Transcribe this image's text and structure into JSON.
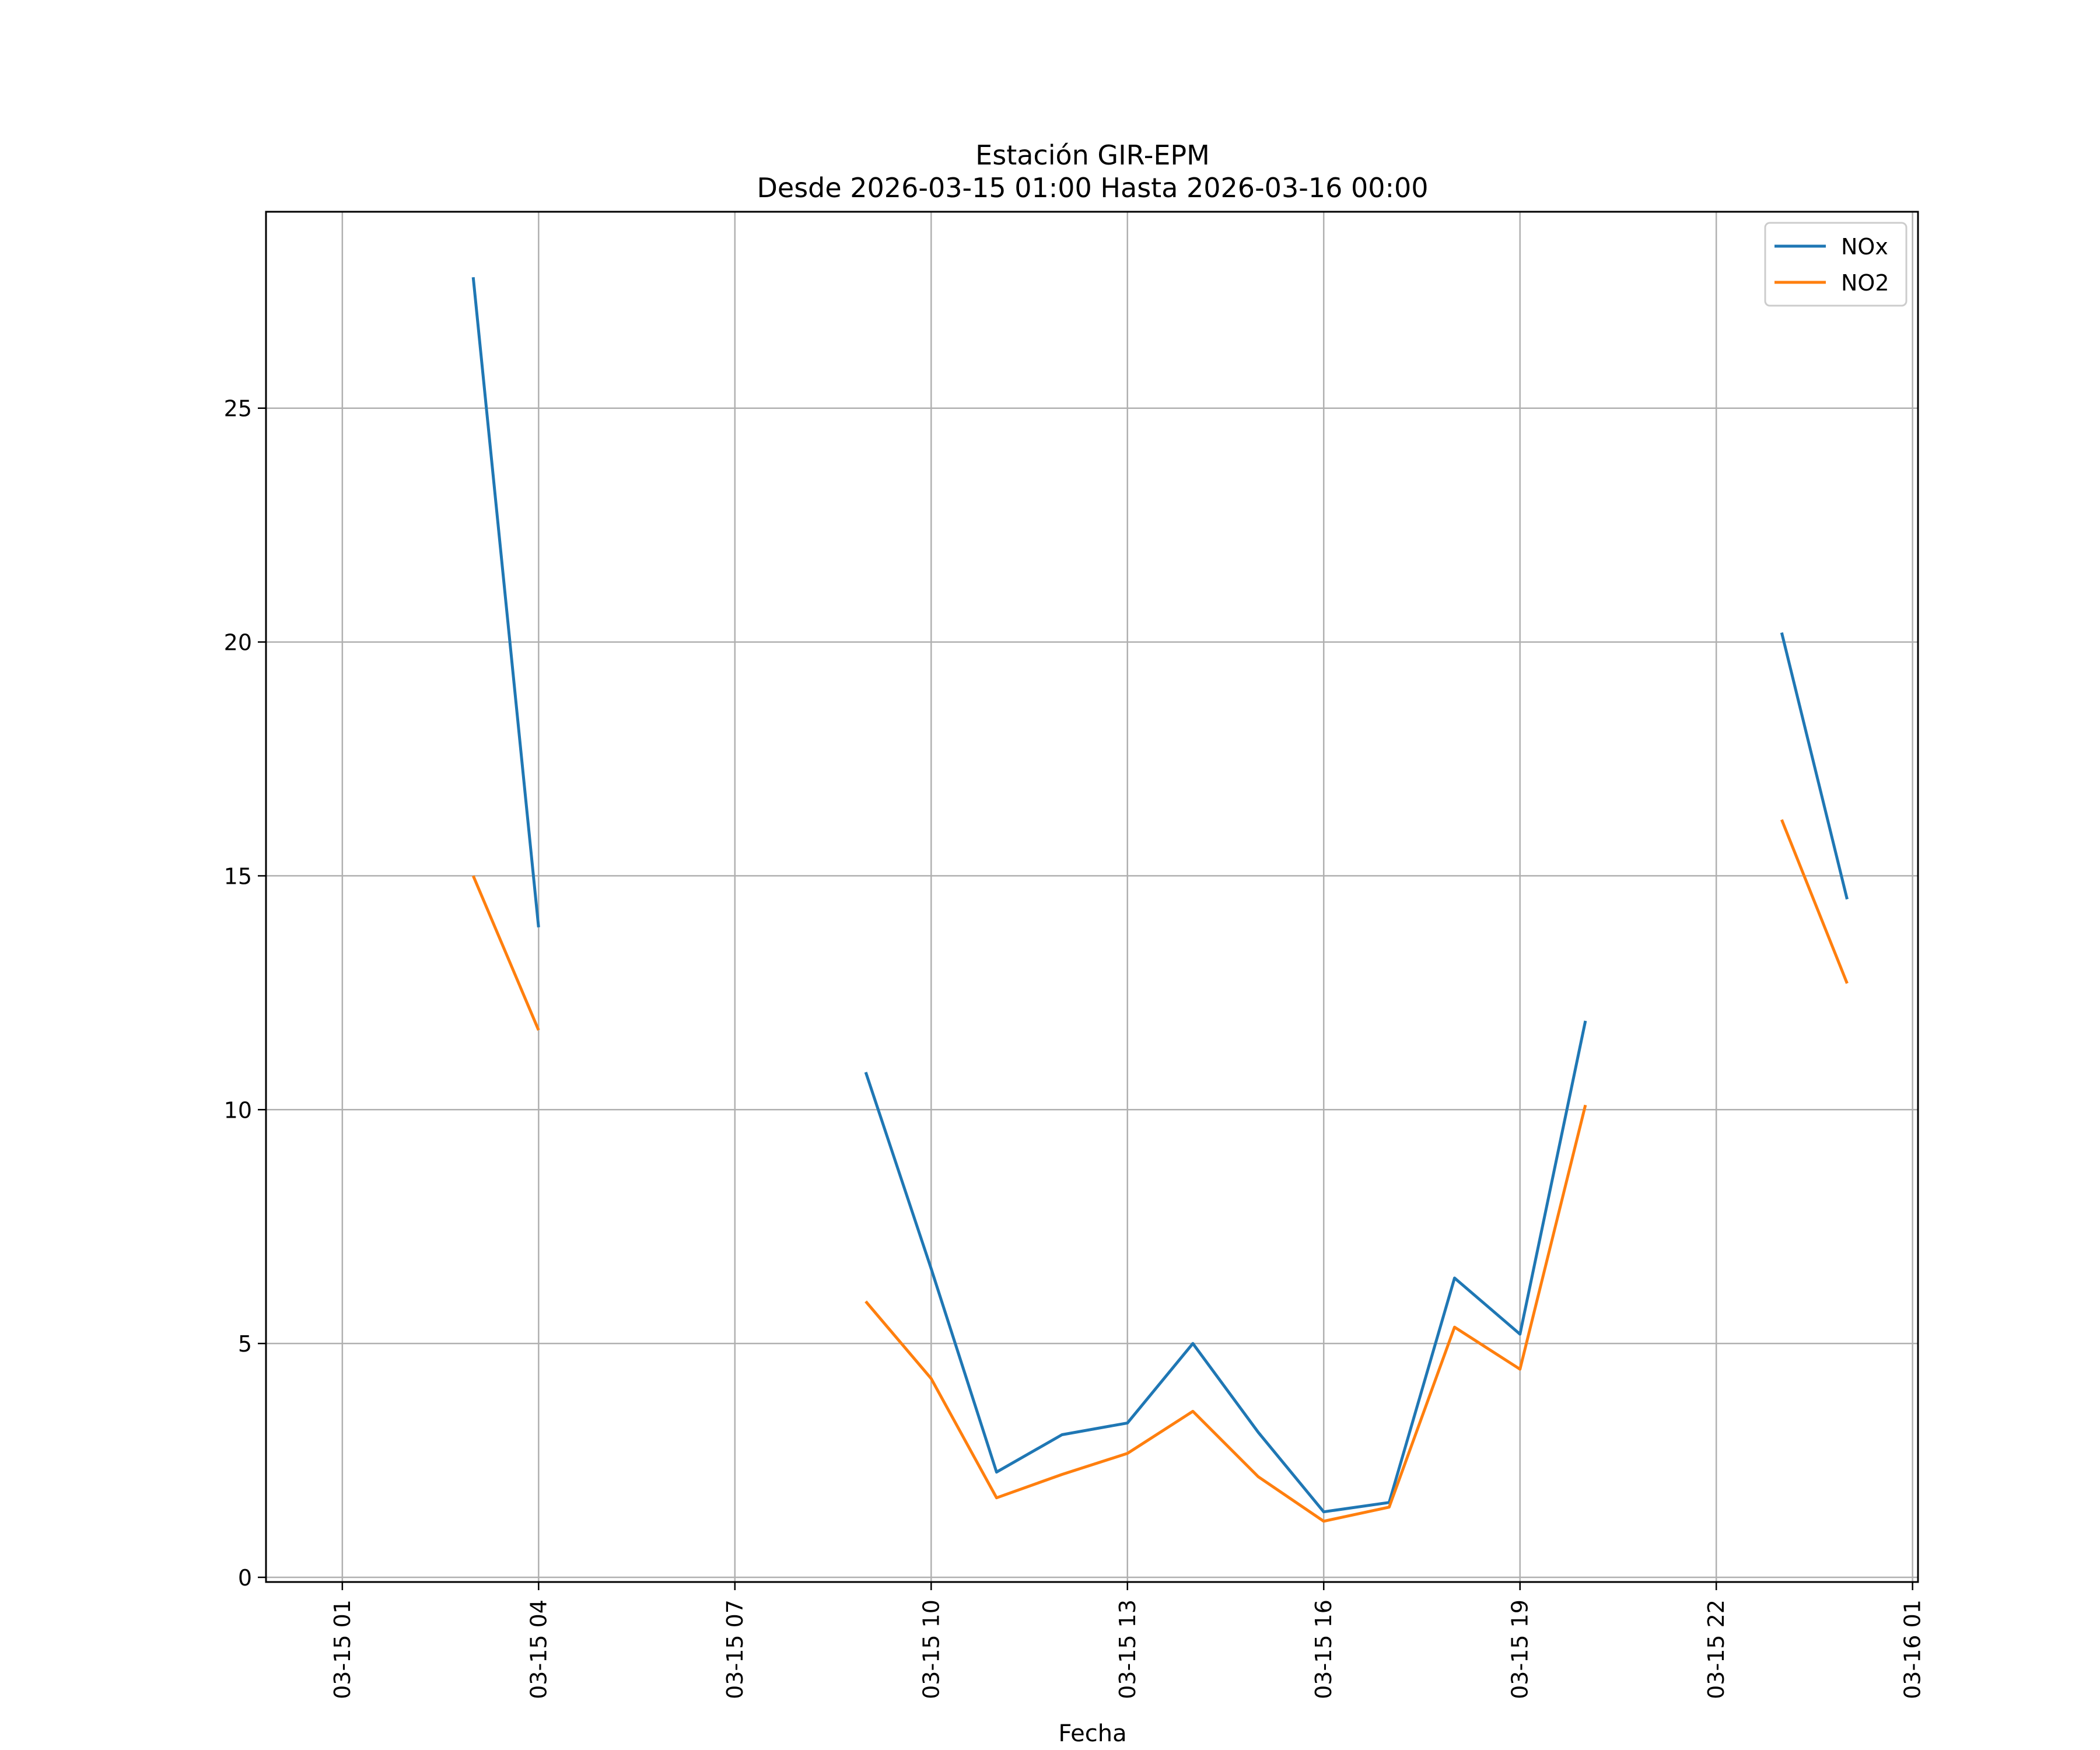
{
  "chart_data": {
    "type": "line",
    "title": "Estación GIR-EPM",
    "subtitle": "Desde 2026-03-15 01:00 Hasta 2026-03-16 00:00",
    "xlabel": "Fecha",
    "ylabel": "",
    "x_ticks": [
      "03-15 01",
      "03-15 04",
      "03-15 07",
      "03-15 10",
      "03-15 13",
      "03-15 16",
      "03-15 19",
      "03-15 22",
      "03-16 01"
    ],
    "y_ticks": [
      0,
      5,
      10,
      15,
      20,
      25
    ],
    "xlim": [
      "2026-03-14 23:50",
      "2026-03-16 01:05"
    ],
    "ylim": [
      -0.1,
      29.2
    ],
    "grid": true,
    "legend_position": "top-right",
    "x": [
      "2026-03-15 01:00",
      "2026-03-15 02:00",
      "2026-03-15 03:00",
      "2026-03-15 04:00",
      "2026-03-15 05:00",
      "2026-03-15 06:00",
      "2026-03-15 07:00",
      "2026-03-15 08:00",
      "2026-03-15 09:00",
      "2026-03-15 10:00",
      "2026-03-15 11:00",
      "2026-03-15 12:00",
      "2026-03-15 13:00",
      "2026-03-15 14:00",
      "2026-03-15 15:00",
      "2026-03-15 16:00",
      "2026-03-15 17:00",
      "2026-03-15 18:00",
      "2026-03-15 19:00",
      "2026-03-15 20:00",
      "2026-03-15 21:00",
      "2026-03-15 22:00",
      "2026-03-15 23:00",
      "2026-03-16 00:00"
    ],
    "series": [
      {
        "name": "NOx",
        "color": "#1f77b4",
        "values": [
          null,
          null,
          27.8,
          13.9,
          null,
          null,
          null,
          null,
          10.8,
          6.6,
          2.25,
          3.05,
          3.3,
          5.0,
          3.1,
          1.4,
          1.6,
          6.4,
          5.2,
          11.9,
          null,
          null,
          20.2,
          14.5
        ]
      },
      {
        "name": "NO2",
        "color": "#ff7f0e",
        "values": [
          null,
          null,
          15.0,
          11.7,
          null,
          null,
          null,
          null,
          5.9,
          4.25,
          1.7,
          2.2,
          2.65,
          3.55,
          2.15,
          1.2,
          1.5,
          5.35,
          4.45,
          10.1,
          null,
          null,
          16.2,
          12.7
        ]
      }
    ]
  }
}
